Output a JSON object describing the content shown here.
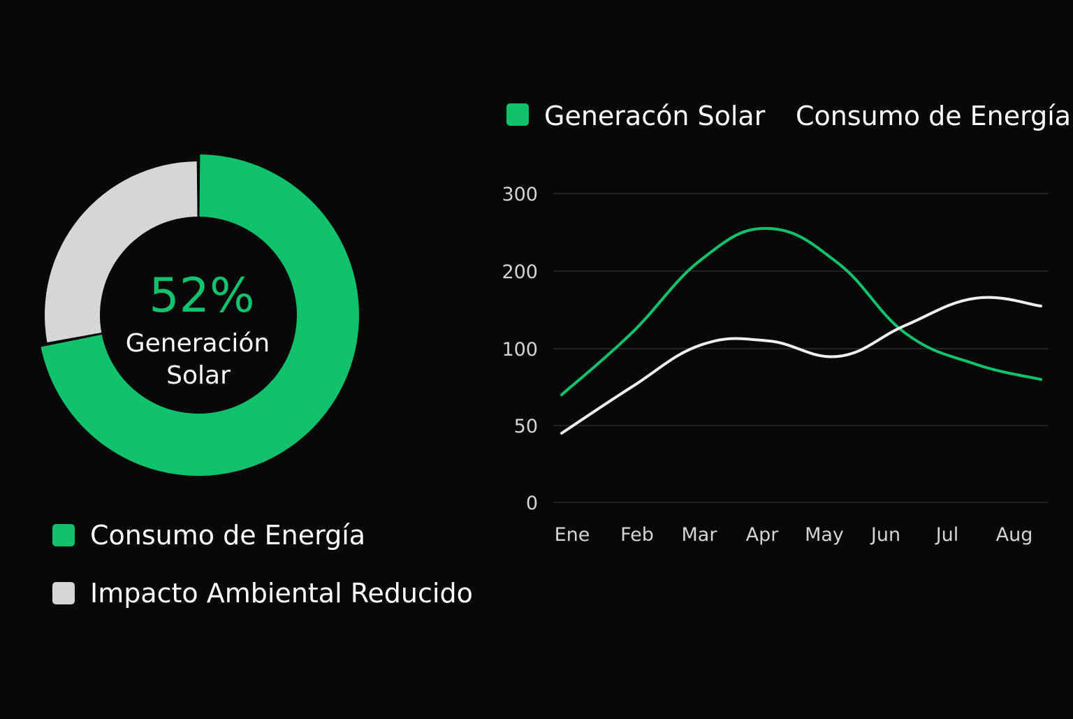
{
  "colors": {
    "background": "#080808",
    "green": "#10c26b",
    "light_gray": "#d6d6d6",
    "white_line": "#efefef",
    "grid": "#2a2a2a",
    "axis_text": "#d4d4d4"
  },
  "chart_data": [
    {
      "type": "pie",
      "variant": "donut",
      "center_value": "52%",
      "center_label_line1": "Generación",
      "center_label_line2": "Solar",
      "slices": [
        {
          "name": "Consumo de Energía",
          "value": 72,
          "color": "#10c26b"
        },
        {
          "name": "Impacto Ambiental Reducido",
          "value": 28,
          "color": "#d6d6d6"
        }
      ],
      "legend_placement": "bottom",
      "legend": [
        {
          "label": "Consumo de Energía",
          "color": "#10c26b"
        },
        {
          "label": "Impacto Ambiental Reducido",
          "color": "#d6d6d6"
        }
      ]
    },
    {
      "type": "line",
      "smooth": true,
      "categories": [
        "Ene",
        "Feb",
        "Mar",
        "Apr",
        "May",
        "Jun",
        "Jul",
        "Aug"
      ],
      "yticks": [
        {
          "label": "0",
          "value": 0
        },
        {
          "label": "50",
          "value": 50
        },
        {
          "label": "100",
          "value": 100
        },
        {
          "label": "200",
          "value": 200
        },
        {
          "label": "300",
          "value": 300
        }
      ],
      "ylim": [
        0,
        300
      ],
      "grid": true,
      "legend_placement": "top",
      "series": [
        {
          "name": "Generacón Solar",
          "color": "#10c26b",
          "values": [
            70,
            120,
            215,
            255,
            210,
            120,
            90,
            80
          ]
        },
        {
          "name": "Consumo de Energía",
          "color": "#efefef",
          "values": [
            45,
            75,
            105,
            110,
            95,
            130,
            165,
            155
          ]
        }
      ]
    }
  ]
}
